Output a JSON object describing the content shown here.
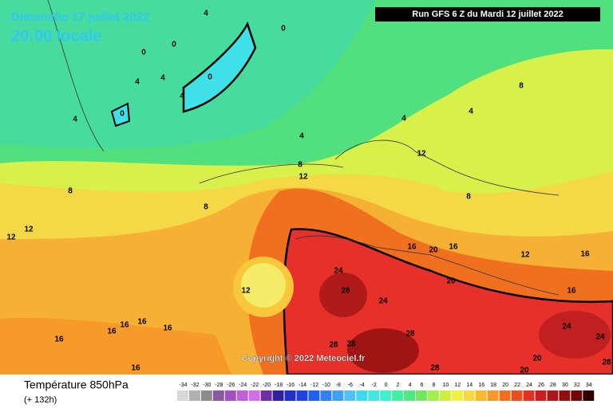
{
  "header": {
    "date": "Dimanche 17 juillet 2022",
    "time": "20:00 locale",
    "run": "Run GFS 6 Z du Mardi 12 juillet 2022",
    "copyright": "Copyright © 2022 Meteociel.fr"
  },
  "footer": {
    "title": "Température 850hPa",
    "lead": "(+ 132h)"
  },
  "legend": {
    "values": [
      -34,
      -32,
      -30,
      -28,
      -26,
      -24,
      -22,
      -20,
      -18,
      -16,
      -14,
      -12,
      -10,
      -8,
      -6,
      -4,
      -2,
      0,
      2,
      4,
      6,
      8,
      10,
      12,
      14,
      16,
      18,
      20,
      22,
      24,
      26,
      28,
      30,
      32,
      34
    ],
    "colors": [
      "#d8d8d8",
      "#b0b0b0",
      "#8c8c8c",
      "#8a5aa0",
      "#a050c0",
      "#c060d8",
      "#d070e8",
      "#7030a0",
      "#3020a0",
      "#2030c8",
      "#2040e0",
      "#2060f0",
      "#3080f8",
      "#40a0f8",
      "#50c0f8",
      "#40d8f0",
      "#40e8e0",
      "#40f0c8",
      "#40f0a0",
      "#50e880",
      "#70e860",
      "#a0f050",
      "#d0f040",
      "#f0f040",
      "#f8d840",
      "#f8b830",
      "#f89828",
      "#f07020",
      "#e85020",
      "#e03020",
      "#c82020",
      "#a81818",
      "#901010",
      "#700808",
      "#300000"
    ]
  },
  "contour_labels": [
    4,
    0,
    0,
    0,
    0,
    4,
    4,
    0,
    4,
    4,
    4,
    4,
    4,
    8,
    8,
    8,
    8,
    12,
    12,
    8,
    12,
    12,
    12,
    12,
    16,
    16,
    20,
    16,
    16,
    20,
    24,
    28,
    24,
    28,
    28,
    28,
    28,
    20,
    20,
    24,
    24,
    28,
    16,
    16,
    16,
    16,
    16,
    16
  ]
}
